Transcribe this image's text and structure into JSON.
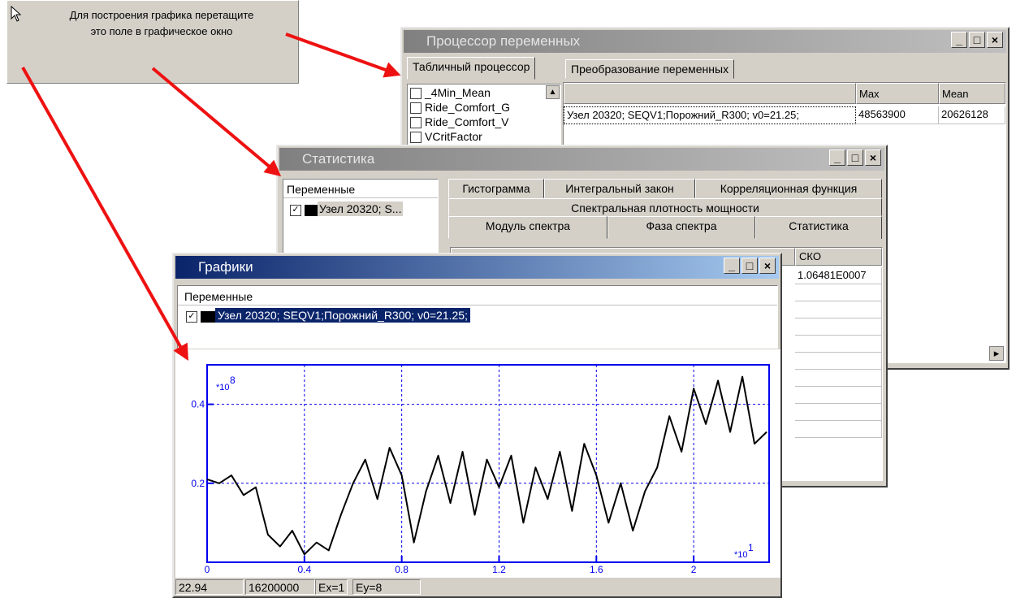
{
  "hint": {
    "lines": [
      "Для построения графика перетащите",
      "это поле в графическое окно"
    ]
  },
  "processor": {
    "title": "Процессор переменных",
    "tabs": [
      "Табличный процессор",
      "Преобразование переменных"
    ],
    "variables": [
      "_4Min_Mean",
      "Ride_Comfort_G",
      "Ride_Comfort_V",
      "VCritFactor"
    ],
    "table": {
      "columns": [
        "Max",
        "Mean"
      ],
      "rows": [
        [
          "Узел 20320; SEQV1;Порожний_R300; v0=21.25;",
          48563900,
          20626128
        ]
      ]
    }
  },
  "statistics": {
    "title": "Статистика",
    "panel_label": "Переменные",
    "variables": [
      "Узел 20320; S..."
    ],
    "tabs": [
      [
        "Гистограмма",
        "Интегральный закон",
        "Корреляционная функция"
      ],
      [
        "Спектральная плотность мощности"
      ],
      [
        "Модуль спектра",
        "Фаза спектра",
        "Статистика"
      ]
    ],
    "table": {
      "columns": [
        "СКО"
      ],
      "rows": [
        [
          "1.06481E0007"
        ]
      ]
    }
  },
  "graphs": {
    "title": "Графики",
    "panel_label": "Переменные",
    "variables": [
      "Узел 20320; SEQV1;Порожний_R300; v0=21.25;"
    ],
    "status": [
      22.94,
      16200000,
      "Ex=1",
      "Ey=8"
    ]
  },
  "chart_data": {
    "type": "line",
    "y_multiplier": "*10",
    "y_multiplier_exp": "8",
    "x_multiplier": "*10",
    "x_multiplier_exp": "1",
    "xlim": [
      0,
      2.31
    ],
    "ylim": [
      0,
      0.5
    ],
    "xticks": [
      0,
      0.4,
      0.8,
      1.2,
      1.6,
      2
    ],
    "yticks": [
      0.2,
      0.4
    ],
    "grid": true,
    "x": [
      0,
      0.05,
      0.1,
      0.15,
      0.2,
      0.25,
      0.3,
      0.35,
      0.4,
      0.45,
      0.5,
      0.55,
      0.6,
      0.65,
      0.7,
      0.75,
      0.8,
      0.85,
      0.9,
      0.95,
      1.0,
      1.05,
      1.1,
      1.15,
      1.2,
      1.25,
      1.3,
      1.35,
      1.4,
      1.45,
      1.5,
      1.55,
      1.6,
      1.65,
      1.7,
      1.75,
      1.8,
      1.85,
      1.9,
      1.95,
      2.0,
      2.05,
      2.1,
      2.15,
      2.2,
      2.25,
      2.3
    ],
    "series": [
      {
        "color": "#000000",
        "values": [
          0.21,
          0.2,
          0.22,
          0.17,
          0.19,
          0.07,
          0.04,
          0.08,
          0.02,
          0.05,
          0.03,
          0.12,
          0.2,
          0.26,
          0.16,
          0.29,
          0.22,
          0.05,
          0.18,
          0.27,
          0.15,
          0.28,
          0.12,
          0.26,
          0.19,
          0.27,
          0.1,
          0.24,
          0.16,
          0.28,
          0.13,
          0.3,
          0.22,
          0.1,
          0.2,
          0.08,
          0.18,
          0.24,
          0.37,
          0.28,
          0.44,
          0.35,
          0.46,
          0.33,
          0.47,
          0.3,
          0.33
        ]
      }
    ]
  }
}
